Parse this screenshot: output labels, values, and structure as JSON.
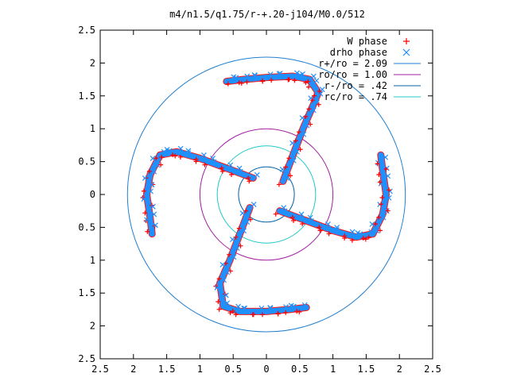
{
  "chart_data": {
    "type": "scatter",
    "title": "m4/n1.5/q1.75/r-+.20-j104/M0.0/512",
    "xlim": [
      -2.5,
      2.5
    ],
    "ylim": [
      -2.5,
      2.5
    ],
    "xticks": [
      -2.5,
      -2,
      -1.5,
      -1,
      -0.5,
      0,
      0.5,
      1,
      1.5,
      2,
      2.5
    ],
    "xtick_labels": [
      "2.5",
      "2",
      "1.5",
      "1",
      "0.5",
      "0",
      "0.5",
      "1",
      "1.5",
      "2",
      "2.5"
    ],
    "yticks": [
      2.5,
      2,
      1.5,
      1,
      0.5,
      0,
      -0.5,
      -1,
      -1.5,
      -2,
      -2.5
    ],
    "ytick_labels": [
      "2.5",
      "2",
      "1.5",
      "1",
      "0.5",
      "0",
      "0.5",
      "1",
      "1.5",
      "2",
      "2.5"
    ],
    "grid": false,
    "legend_position": "top-right",
    "series": [
      {
        "name": "W phase",
        "marker": "plus",
        "color": "#ff0000"
      },
      {
        "name": "drho phase",
        "marker": "cross",
        "color": "#1e90ff"
      }
    ],
    "circles": [
      {
        "name": "r+/ro = 2.09",
        "r": 2.09,
        "color": "#1f7fd1"
      },
      {
        "name": "ro/ro = 1.00",
        "r": 1.0,
        "color": "#a020a0"
      },
      {
        "name": "r-/ro = .42",
        "r": 0.42,
        "color": "#0060a8"
      },
      {
        "name": "rc/ro = .74",
        "r": 0.74,
        "color": "#20c8c8"
      }
    ],
    "arms": [
      {
        "points": [
          [
            0.25,
            0.2
          ],
          [
            0.4,
            0.6
          ],
          [
            0.55,
            1.0
          ],
          [
            0.7,
            1.35
          ],
          [
            0.78,
            1.55
          ],
          [
            0.65,
            1.75
          ],
          [
            0.4,
            1.8
          ],
          [
            0.0,
            1.78
          ],
          [
            -0.35,
            1.75
          ],
          [
            -0.6,
            1.72
          ]
        ]
      },
      {
        "points": [
          [
            -0.2,
            0.25
          ],
          [
            -0.6,
            0.4
          ],
          [
            -1.0,
            0.55
          ],
          [
            -1.35,
            0.65
          ],
          [
            -1.6,
            0.6
          ],
          [
            -1.75,
            0.3
          ],
          [
            -1.8,
            0.0
          ],
          [
            -1.75,
            -0.35
          ],
          [
            -1.72,
            -0.6
          ]
        ]
      },
      {
        "points": [
          [
            -0.25,
            -0.2
          ],
          [
            -0.4,
            -0.6
          ],
          [
            -0.55,
            -1.0
          ],
          [
            -0.7,
            -1.35
          ],
          [
            -0.65,
            -1.7
          ],
          [
            -0.4,
            -1.78
          ],
          [
            0.0,
            -1.78
          ],
          [
            0.35,
            -1.75
          ],
          [
            0.6,
            -1.72
          ]
        ]
      },
      {
        "points": [
          [
            0.2,
            -0.25
          ],
          [
            0.6,
            -0.4
          ],
          [
            1.0,
            -0.55
          ],
          [
            1.35,
            -0.65
          ],
          [
            1.6,
            -0.6
          ],
          [
            1.75,
            -0.3
          ],
          [
            1.8,
            0.0
          ],
          [
            1.75,
            0.35
          ],
          [
            1.72,
            0.6
          ]
        ]
      }
    ]
  }
}
